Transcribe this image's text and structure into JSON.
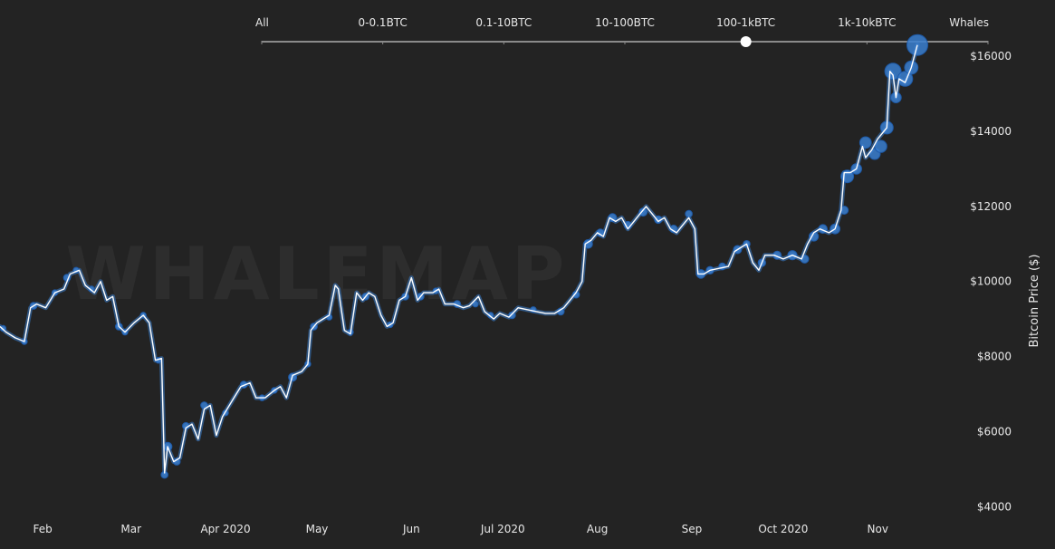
{
  "colors": {
    "background": "#232323",
    "text": "#e8e8e8",
    "slider_track": "#8a8a8a",
    "price_line": "#ffffff",
    "bubble_fill": "#3a7fd0",
    "bubble_stroke": "#1e5aa8",
    "watermark": "#2d2d2d"
  },
  "watermark": "WHALEMAP",
  "slider": {
    "labels": [
      "All",
      "0-0.1BTC",
      "0.1-10BTC",
      "10-100BTC",
      "100-1kBTC",
      "1k-10kBTC",
      "Whales"
    ],
    "selected_index": 4
  },
  "chart_data": {
    "type": "line",
    "x_axis": "time",
    "xlabel": "",
    "ylabel": "Bitcoin Price ($)",
    "ylim": [
      3500,
      17500
    ],
    "y_ticks": [
      4000,
      6000,
      8000,
      10000,
      12000,
      14000,
      16000
    ],
    "y_tick_labels": [
      "$4000",
      "$6000",
      "$8000",
      "$10000",
      "$12000",
      "$14000",
      "$16000"
    ],
    "x_tick_labels": [
      "Feb",
      "Mar",
      "Apr 2020",
      "May",
      "Jun",
      "Jul 2020",
      "Aug",
      "Sep",
      "Oct 2020",
      "Nov"
    ],
    "x_tick_dates": [
      "2020-02-01",
      "2020-03-01",
      "2020-04-01",
      "2020-05-01",
      "2020-06-01",
      "2020-07-01",
      "2020-08-01",
      "2020-09-01",
      "2020-10-01",
      "2020-11-01"
    ],
    "xlim": [
      "2020-01-18",
      "2020-11-25"
    ],
    "series": [
      {
        "points": [
          [
            "2020-01-18",
            8800
          ],
          [
            "2020-01-20",
            8650
          ],
          [
            "2020-01-23",
            8500
          ],
          [
            "2020-01-26",
            8400
          ],
          [
            "2020-01-28",
            9300
          ],
          [
            "2020-01-30",
            9400
          ],
          [
            "2020-02-02",
            9300
          ],
          [
            "2020-02-05",
            9700
          ],
          [
            "2020-02-08",
            9800
          ],
          [
            "2020-02-10",
            10200
          ],
          [
            "2020-02-13",
            10300
          ],
          [
            "2020-02-15",
            9900
          ],
          [
            "2020-02-18",
            9700
          ],
          [
            "2020-02-20",
            10000
          ],
          [
            "2020-02-22",
            9500
          ],
          [
            "2020-02-24",
            9600
          ],
          [
            "2020-02-26",
            8800
          ],
          [
            "2020-02-28",
            8650
          ],
          [
            "2020-03-02",
            8900
          ],
          [
            "2020-03-05",
            9100
          ],
          [
            "2020-03-07",
            8900
          ],
          [
            "2020-03-09",
            7900
          ],
          [
            "2020-03-11",
            7950
          ],
          [
            "2020-03-12",
            4900
          ],
          [
            "2020-03-13",
            5600
          ],
          [
            "2020-03-15",
            5200
          ],
          [
            "2020-03-17",
            5300
          ],
          [
            "2020-03-19",
            6100
          ],
          [
            "2020-03-21",
            6200
          ],
          [
            "2020-03-23",
            5800
          ],
          [
            "2020-03-25",
            6600
          ],
          [
            "2020-03-27",
            6700
          ],
          [
            "2020-03-29",
            5900
          ],
          [
            "2020-03-31",
            6400
          ],
          [
            "2020-04-03",
            6800
          ],
          [
            "2020-04-06",
            7200
          ],
          [
            "2020-04-09",
            7300
          ],
          [
            "2020-04-11",
            6900
          ],
          [
            "2020-04-14",
            6900
          ],
          [
            "2020-04-17",
            7100
          ],
          [
            "2020-04-19",
            7200
          ],
          [
            "2020-04-21",
            6900
          ],
          [
            "2020-04-23",
            7500
          ],
          [
            "2020-04-26",
            7600
          ],
          [
            "2020-04-28",
            7800
          ],
          [
            "2020-04-29",
            8700
          ],
          [
            "2020-05-01",
            8900
          ],
          [
            "2020-05-03",
            9000
          ],
          [
            "2020-05-05",
            9100
          ],
          [
            "2020-05-07",
            9900
          ],
          [
            "2020-05-08",
            9800
          ],
          [
            "2020-05-10",
            8700
          ],
          [
            "2020-05-12",
            8600
          ],
          [
            "2020-05-14",
            9700
          ],
          [
            "2020-05-16",
            9500
          ],
          [
            "2020-05-18",
            9700
          ],
          [
            "2020-05-20",
            9600
          ],
          [
            "2020-05-22",
            9100
          ],
          [
            "2020-05-24",
            8800
          ],
          [
            "2020-05-26",
            8900
          ],
          [
            "2020-05-28",
            9500
          ],
          [
            "2020-05-30",
            9600
          ],
          [
            "2020-06-01",
            10100
          ],
          [
            "2020-06-03",
            9500
          ],
          [
            "2020-06-05",
            9700
          ],
          [
            "2020-06-08",
            9700
          ],
          [
            "2020-06-10",
            9800
          ],
          [
            "2020-06-12",
            9400
          ],
          [
            "2020-06-15",
            9400
          ],
          [
            "2020-06-18",
            9300
          ],
          [
            "2020-06-20",
            9350
          ],
          [
            "2020-06-23",
            9600
          ],
          [
            "2020-06-25",
            9200
          ],
          [
            "2020-06-28",
            9000
          ],
          [
            "2020-06-30",
            9150
          ],
          [
            "2020-07-03",
            9050
          ],
          [
            "2020-07-06",
            9300
          ],
          [
            "2020-07-09",
            9250
          ],
          [
            "2020-07-12",
            9200
          ],
          [
            "2020-07-15",
            9150
          ],
          [
            "2020-07-18",
            9150
          ],
          [
            "2020-07-21",
            9300
          ],
          [
            "2020-07-23",
            9500
          ],
          [
            "2020-07-25",
            9700
          ],
          [
            "2020-07-27",
            10000
          ],
          [
            "2020-07-28",
            11000
          ],
          [
            "2020-07-30",
            11100
          ],
          [
            "2020-08-01",
            11300
          ],
          [
            "2020-08-03",
            11200
          ],
          [
            "2020-08-05",
            11700
          ],
          [
            "2020-08-07",
            11600
          ],
          [
            "2020-08-09",
            11700
          ],
          [
            "2020-08-11",
            11400
          ],
          [
            "2020-08-13",
            11600
          ],
          [
            "2020-08-15",
            11800
          ],
          [
            "2020-08-17",
            12000
          ],
          [
            "2020-08-19",
            11800
          ],
          [
            "2020-08-21",
            11600
          ],
          [
            "2020-08-23",
            11700
          ],
          [
            "2020-08-25",
            11400
          ],
          [
            "2020-08-27",
            11300
          ],
          [
            "2020-08-29",
            11500
          ],
          [
            "2020-08-31",
            11700
          ],
          [
            "2020-09-02",
            11400
          ],
          [
            "2020-09-03",
            10200
          ],
          [
            "2020-09-05",
            10200
          ],
          [
            "2020-09-07",
            10300
          ],
          [
            "2020-09-10",
            10350
          ],
          [
            "2020-09-13",
            10400
          ],
          [
            "2020-09-15",
            10800
          ],
          [
            "2020-09-17",
            10900
          ],
          [
            "2020-09-19",
            11000
          ],
          [
            "2020-09-21",
            10500
          ],
          [
            "2020-09-23",
            10300
          ],
          [
            "2020-09-25",
            10700
          ],
          [
            "2020-09-28",
            10700
          ],
          [
            "2020-10-01",
            10600
          ],
          [
            "2020-10-04",
            10700
          ],
          [
            "2020-10-07",
            10600
          ],
          [
            "2020-10-09",
            11000
          ],
          [
            "2020-10-11",
            11300
          ],
          [
            "2020-10-13",
            11400
          ],
          [
            "2020-10-16",
            11300
          ],
          [
            "2020-10-18",
            11400
          ],
          [
            "2020-10-20",
            11900
          ],
          [
            "2020-10-21",
            12900
          ],
          [
            "2020-10-23",
            12900
          ],
          [
            "2020-10-25",
            13000
          ],
          [
            "2020-10-27",
            13600
          ],
          [
            "2020-10-28",
            13300
          ],
          [
            "2020-10-30",
            13500
          ],
          [
            "2020-11-01",
            13800
          ],
          [
            "2020-11-03",
            14000
          ],
          [
            "2020-11-04",
            14100
          ],
          [
            "2020-11-05",
            15600
          ],
          [
            "2020-11-06",
            15500
          ],
          [
            "2020-11-07",
            14900
          ],
          [
            "2020-11-08",
            15400
          ],
          [
            "2020-11-10",
            15300
          ],
          [
            "2020-11-12",
            15700
          ],
          [
            "2020-11-14",
            16300
          ]
        ]
      }
    ],
    "bubbles": [
      [
        "2020-01-19",
        8750,
        1
      ],
      [
        "2020-01-26",
        8400,
        1
      ],
      [
        "2020-01-29",
        9350,
        1.2
      ],
      [
        "2020-02-05",
        9700,
        1
      ],
      [
        "2020-02-09",
        10100,
        1.2
      ],
      [
        "2020-02-12",
        10300,
        1
      ],
      [
        "2020-02-17",
        9800,
        1
      ],
      [
        "2020-02-26",
        8800,
        1.2
      ],
      [
        "2020-02-28",
        8650,
        1
      ],
      [
        "2020-03-05",
        9100,
        1
      ],
      [
        "2020-03-10",
        7900,
        1
      ],
      [
        "2020-03-12",
        4850,
        1.2
      ],
      [
        "2020-03-13",
        5600,
        1.5
      ],
      [
        "2020-03-16",
        5200,
        1.2
      ],
      [
        "2020-03-19",
        6150,
        1.2
      ],
      [
        "2020-03-25",
        6700,
        1.2
      ],
      [
        "2020-04-01",
        6500,
        1
      ],
      [
        "2020-04-07",
        7250,
        1.2
      ],
      [
        "2020-04-13",
        6900,
        1
      ],
      [
        "2020-04-17",
        7100,
        1
      ],
      [
        "2020-04-23",
        7450,
        1.4
      ],
      [
        "2020-04-28",
        7800,
        1
      ],
      [
        "2020-04-30",
        8800,
        1.2
      ],
      [
        "2020-05-05",
        9050,
        1
      ],
      [
        "2020-05-12",
        8650,
        1
      ],
      [
        "2020-05-17",
        9600,
        1.2
      ],
      [
        "2020-05-25",
        8850,
        1
      ],
      [
        "2020-05-30",
        9600,
        1.2
      ],
      [
        "2020-06-04",
        9600,
        1.2
      ],
      [
        "2020-06-09",
        9750,
        1
      ],
      [
        "2020-06-16",
        9400,
        1.2
      ],
      [
        "2020-06-22",
        9400,
        1
      ],
      [
        "2020-06-27",
        9100,
        1
      ],
      [
        "2020-07-04",
        9100,
        1.2
      ],
      [
        "2020-07-11",
        9250,
        1
      ],
      [
        "2020-07-20",
        9200,
        1.2
      ],
      [
        "2020-07-25",
        9650,
        1.2
      ],
      [
        "2020-07-29",
        11000,
        1.5
      ],
      [
        "2020-08-02",
        11300,
        1.3
      ],
      [
        "2020-08-06",
        11700,
        1.4
      ],
      [
        "2020-08-11",
        11500,
        1.3
      ],
      [
        "2020-08-16",
        11850,
        1.4
      ],
      [
        "2020-08-21",
        11650,
        1.3
      ],
      [
        "2020-08-26",
        11400,
        1.3
      ],
      [
        "2020-08-31",
        11800,
        1.2
      ],
      [
        "2020-09-04",
        10200,
        1.5
      ],
      [
        "2020-09-07",
        10300,
        1.3
      ],
      [
        "2020-09-11",
        10400,
        1.2
      ],
      [
        "2020-09-16",
        10850,
        1.4
      ],
      [
        "2020-09-19",
        11000,
        1.2
      ],
      [
        "2020-09-24",
        10500,
        1.3
      ],
      [
        "2020-09-29",
        10700,
        1.4
      ],
      [
        "2020-10-04",
        10700,
        1.6
      ],
      [
        "2020-10-08",
        10600,
        1.4
      ],
      [
        "2020-10-11",
        11200,
        1.6
      ],
      [
        "2020-10-14",
        11400,
        1.5
      ],
      [
        "2020-10-18",
        11400,
        1.7
      ],
      [
        "2020-10-21",
        11900,
        1.4
      ],
      [
        "2020-10-22",
        12800,
        2.2
      ],
      [
        "2020-10-25",
        13000,
        1.8
      ],
      [
        "2020-10-28",
        13700,
        2.0
      ],
      [
        "2020-10-31",
        13400,
        1.9
      ],
      [
        "2020-11-02",
        13600,
        2.1
      ],
      [
        "2020-11-04",
        14100,
        2.2
      ],
      [
        "2020-11-06",
        15600,
        2.8
      ],
      [
        "2020-11-07",
        14900,
        1.8
      ],
      [
        "2020-11-10",
        15400,
        2.6
      ],
      [
        "2020-11-12",
        15700,
        2.3
      ],
      [
        "2020-11-14",
        16300,
        3.6
      ]
    ]
  }
}
